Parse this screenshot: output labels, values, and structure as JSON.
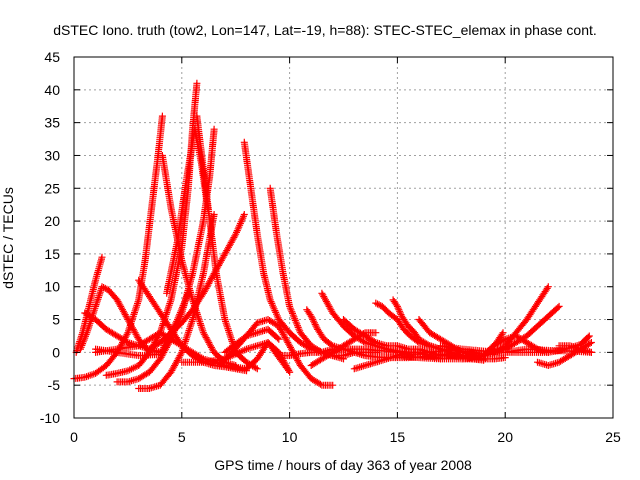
{
  "chart_data": {
    "type": "scatter",
    "title": "dSTEC Iono. truth (tow2, Lon=147, Lat=-19, h=88): STEC-STEC_elemax in phase cont.",
    "xlabel": "GPS time / hours of day 363 of year 2008",
    "ylabel": "dSTEC  / TECUs",
    "xlim": [
      0,
      25
    ],
    "ylim": [
      -10,
      45
    ],
    "x_ticks": [
      0,
      5,
      10,
      15,
      20,
      25
    ],
    "y_ticks": [
      -10,
      -5,
      0,
      5,
      10,
      15,
      20,
      25,
      30,
      35,
      40,
      45
    ],
    "x_tick_labels": [
      "0",
      "5",
      "10",
      "15",
      "20",
      "25"
    ],
    "y_tick_labels": [
      "-10",
      "-5",
      "0",
      "5",
      "10",
      "15",
      "20",
      "25",
      "30",
      "35",
      "40",
      "45"
    ],
    "grid": true,
    "marker": "+",
    "color": "#ff0000",
    "series": [
      {
        "x": [
          0.0,
          0.5,
          1.0,
          1.5,
          2.0,
          2.5,
          3.0,
          3.3,
          3.6,
          3.9,
          4.1
        ],
        "y": [
          -4,
          -3.8,
          -3.2,
          -2,
          0,
          3,
          8,
          14,
          22,
          30,
          36
        ]
      },
      {
        "x": [
          4.1,
          4.5,
          5.0,
          5.5,
          6.0,
          6.5,
          7.0,
          7.5
        ],
        "y": [
          30,
          22,
          14,
          8,
          3,
          0,
          -1.5,
          -2
        ]
      },
      {
        "x": [
          1.5,
          2.0,
          2.5,
          3.0,
          3.5,
          4.0,
          4.5,
          5.0,
          5.3,
          5.5,
          5.7
        ],
        "y": [
          -3.5,
          -3.2,
          -2.8,
          -2,
          0,
          3,
          8,
          16,
          25,
          34,
          41
        ]
      },
      {
        "x": [
          5.7,
          6.0,
          6.3,
          6.6,
          7.0,
          7.5,
          8.0,
          8.5
        ],
        "y": [
          36,
          28,
          20,
          12,
          5,
          0,
          -1.5,
          -2.5
        ]
      },
      {
        "x": [
          2.0,
          2.5,
          3.0,
          3.5,
          4.0,
          4.5,
          5.0,
          5.5,
          6.0,
          6.3,
          6.5
        ],
        "y": [
          -4.5,
          -4.5,
          -4,
          -3,
          -1,
          2,
          6,
          12,
          20,
          27,
          34
        ]
      },
      {
        "x": [
          4.3,
          4.8,
          5.2,
          5.6,
          5.9,
          6.2
        ],
        "y": [
          9,
          17,
          26,
          34,
          29,
          22
        ]
      },
      {
        "x": [
          3.0,
          3.5,
          4.0,
          4.5,
          5.0,
          5.5,
          6.0,
          6.5
        ],
        "y": [
          -5.5,
          -5.5,
          -5,
          -3,
          0,
          5,
          12,
          21
        ]
      },
      {
        "x": [
          0.3,
          0.6,
          1.0,
          1.3,
          1.6,
          2.0,
          2.5,
          3.0,
          3.5
        ],
        "y": [
          0.5,
          3,
          7,
          10,
          9.5,
          8,
          5,
          2,
          0
        ]
      },
      {
        "x": [
          0.5,
          1.0,
          1.5,
          2.0,
          2.5,
          3.0,
          3.5,
          4.0
        ],
        "y": [
          6,
          5,
          3.5,
          2.5,
          1.5,
          1,
          0.5,
          0
        ]
      },
      {
        "x": [
          0.1,
          0.4,
          0.7,
          1.0,
          1.3
        ],
        "y": [
          0,
          3,
          7,
          11,
          14.5
        ]
      },
      {
        "x": [
          1.0,
          2.0,
          3.0,
          3.5,
          4.0,
          5.0,
          6.0,
          7.0,
          8.0
        ],
        "y": [
          0,
          0.5,
          1,
          2,
          3,
          1,
          -1,
          -2,
          -2.5
        ]
      },
      {
        "x": [
          3.0,
          3.4,
          3.8,
          4.2,
          4.6,
          5.0,
          5.5,
          6.0,
          6.5,
          7.0,
          7.5,
          8.0
        ],
        "y": [
          11,
          9,
          7,
          5,
          3,
          1,
          -0.5,
          -1.5,
          -2,
          -2.2,
          -2.5,
          -2.8
        ]
      },
      {
        "x": [
          3.5,
          4.0,
          4.5,
          5.0,
          5.5,
          6.0,
          6.5,
          7.0,
          7.5,
          7.9
        ],
        "y": [
          0.5,
          1.5,
          3,
          4.5,
          6.5,
          9,
          12,
          15,
          18,
          21
        ]
      },
      {
        "x": [
          1.0,
          2.0,
          3.0,
          4.0,
          4.8,
          5.3
        ],
        "y": [
          0.5,
          0,
          -0.5,
          -0.3,
          5,
          9
        ]
      },
      {
        "x": [
          6.8,
          7.2,
          7.6,
          8.0,
          8.5,
          9.0,
          9.5,
          10.0,
          10.5,
          11.0,
          11.5,
          12.0
        ],
        "y": [
          -1.5,
          -0.5,
          1,
          2.5,
          4.5,
          5,
          4,
          1,
          -2,
          -4,
          -5,
          -5
        ]
      },
      {
        "x": [
          7.9,
          8.2,
          8.5,
          8.8,
          9.1,
          9.5,
          10.0,
          10.5,
          11.0,
          11.5,
          12.0,
          12.5
        ],
        "y": [
          32,
          25,
          18,
          12,
          8,
          5,
          3,
          1.5,
          0.5,
          0,
          -0.5,
          -1
        ]
      },
      {
        "x": [
          9.1,
          9.4,
          9.7,
          10.0,
          10.5,
          11.0,
          11.5,
          12.0,
          12.5,
          13.0,
          13.5,
          14.0
        ],
        "y": [
          25,
          18,
          12,
          7,
          3,
          1,
          0,
          -0.5,
          -0.5,
          0,
          0,
          0
        ]
      },
      {
        "x": [
          5.0,
          6.0,
          7.0,
          8.0,
          9.0,
          10.0
        ],
        "y": [
          -1.5,
          -1.5,
          -1,
          0.5,
          1.5,
          -3
        ]
      },
      {
        "x": [
          8.0,
          8.5,
          9.0,
          9.5,
          10.0
        ],
        "y": [
          -2.5,
          -1,
          1.5,
          0,
          -3
        ]
      },
      {
        "x": [
          7.0,
          8.0,
          9.0,
          9.5
        ],
        "y": [
          0,
          2.5,
          3.5,
          2
        ]
      },
      {
        "x": [
          11.5,
          12.0,
          12.5,
          13.0,
          13.5,
          14.0,
          14.5,
          15.0,
          15.5,
          16.0,
          16.5,
          17.0
        ],
        "y": [
          9,
          6,
          4,
          2.5,
          1.5,
          1,
          0.5,
          0.2,
          0,
          0,
          -0.5,
          -1
        ]
      },
      {
        "x": [
          11.0,
          11.5,
          12.0,
          12.5,
          13.0,
          13.5,
          14.0
        ],
        "y": [
          -2,
          -1,
          0,
          1,
          2,
          3,
          3
        ]
      },
      {
        "x": [
          10.8,
          11.0,
          11.3,
          11.6,
          12.0,
          12.5,
          13.0,
          13.5,
          14.0,
          14.5,
          15.0,
          15.5,
          16.0,
          16.5,
          17.0,
          17.5,
          18.0,
          18.5,
          19.0
        ],
        "y": [
          6.5,
          5.5,
          3.5,
          2,
          1,
          0.5,
          0,
          -0.5,
          -0.7,
          -0.8,
          -0.8,
          -0.8,
          -0.7,
          -0.6,
          -0.5,
          -0.5,
          -0.8,
          -1,
          -1.2
        ]
      },
      {
        "x": [
          12.5,
          13.0,
          13.5,
          14.0,
          14.5,
          15.0,
          15.5,
          16.0,
          16.5,
          17.0
        ],
        "y": [
          5,
          3.5,
          2.5,
          1.5,
          1,
          1,
          0.5,
          0.5,
          0,
          -0.5
        ]
      },
      {
        "x": [
          13.0,
          13.5,
          14.0,
          14.5,
          15.0,
          15.5,
          16.0,
          16.5,
          17.0,
          17.5,
          18.0,
          18.5,
          19.0
        ],
        "y": [
          -2.5,
          -2,
          -1.5,
          -1,
          -0.5,
          0,
          0,
          0,
          0.2,
          0.3,
          0.2,
          0,
          -0.3
        ]
      },
      {
        "x": [
          14.0,
          14.3,
          14.6,
          15.0,
          15.3,
          15.6,
          16.0,
          16.5,
          17.0,
          17.5,
          18.0,
          18.5,
          19.0
        ],
        "y": [
          7.5,
          7,
          6,
          5,
          3.5,
          2.5,
          1.5,
          1,
          0.5,
          0,
          -0.5,
          -1,
          -1
        ]
      },
      {
        "x": [
          14.8,
          15.0,
          15.2,
          15.5,
          15.8,
          16.0,
          16.5,
          17.0
        ],
        "y": [
          8,
          7,
          5.5,
          4,
          3,
          2,
          1,
          0.5
        ]
      },
      {
        "x": [
          16.0,
          16.5,
          17.0,
          17.5,
          18.0,
          18.5,
          19.0,
          19.5,
          20.0
        ],
        "y": [
          5,
          3,
          2,
          1,
          0,
          -0.5,
          -1,
          -1,
          -0.8
        ]
      },
      {
        "x": [
          15.0,
          16.0,
          17.0,
          18.0,
          19.0,
          19.5,
          20.0,
          20.5,
          21.0,
          21.5,
          22.0
        ],
        "y": [
          -0.5,
          -0.8,
          -1,
          -1,
          -0.5,
          0,
          1,
          3,
          5,
          7.5,
          10
        ]
      },
      {
        "x": [
          17.0,
          18.0,
          19.0,
          19.5,
          20.0,
          20.5,
          21.0,
          21.5,
          22.0,
          22.5
        ],
        "y": [
          -0.5,
          -0.5,
          -0.5,
          0,
          0.5,
          1.5,
          2.5,
          4,
          5.5,
          7
        ]
      },
      {
        "x": [
          18.0,
          18.5,
          19.0,
          19.3,
          19.6,
          19.9
        ],
        "y": [
          -1,
          -1,
          -0.5,
          0.5,
          1.5,
          3
        ]
      },
      {
        "x": [
          17.0,
          18.0,
          19.0,
          20.0,
          21.0,
          22.0,
          23.0,
          24.0
        ],
        "y": [
          1,
          0.5,
          0.2,
          0,
          0.5,
          0.3,
          0.2,
          0
        ]
      },
      {
        "x": [
          20.0,
          21.0,
          22.0,
          22.5,
          23.0,
          23.5,
          23.9
        ],
        "y": [
          0,
          0,
          0,
          0.3,
          0.7,
          1.2,
          2.5
        ]
      },
      {
        "x": [
          21.5,
          22.0,
          22.5,
          23.0,
          23.5,
          24.0
        ],
        "y": [
          -1.5,
          -2,
          -1.5,
          -0.5,
          0.5,
          1.5
        ]
      },
      {
        "x": [
          22.5,
          23.0,
          23.5,
          24.0
        ],
        "y": [
          1,
          1,
          0.5,
          0
        ]
      },
      {
        "x": [
          19.5,
          20.0,
          20.5,
          21.0,
          21.5,
          22.0
        ],
        "y": [
          1,
          2,
          2.5,
          1.5,
          0.5,
          0
        ]
      },
      {
        "x": [
          9.5,
          10.0,
          10.5,
          11.0,
          11.5,
          12.0,
          12.5,
          13.0,
          13.5,
          14.0,
          14.5,
          15.0,
          15.5,
          16.0,
          16.5,
          17.0,
          17.5,
          18.0,
          18.5,
          19.0
        ],
        "y": [
          -0.5,
          -0.5,
          -0.2,
          0,
          0,
          0.5,
          0.5,
          0.5,
          0.5,
          0.3,
          0.2,
          0,
          -0.2,
          -0.3,
          -0.3,
          -0.3,
          -0.5,
          -0.5,
          -0.5,
          -0.5
        ]
      }
    ]
  }
}
